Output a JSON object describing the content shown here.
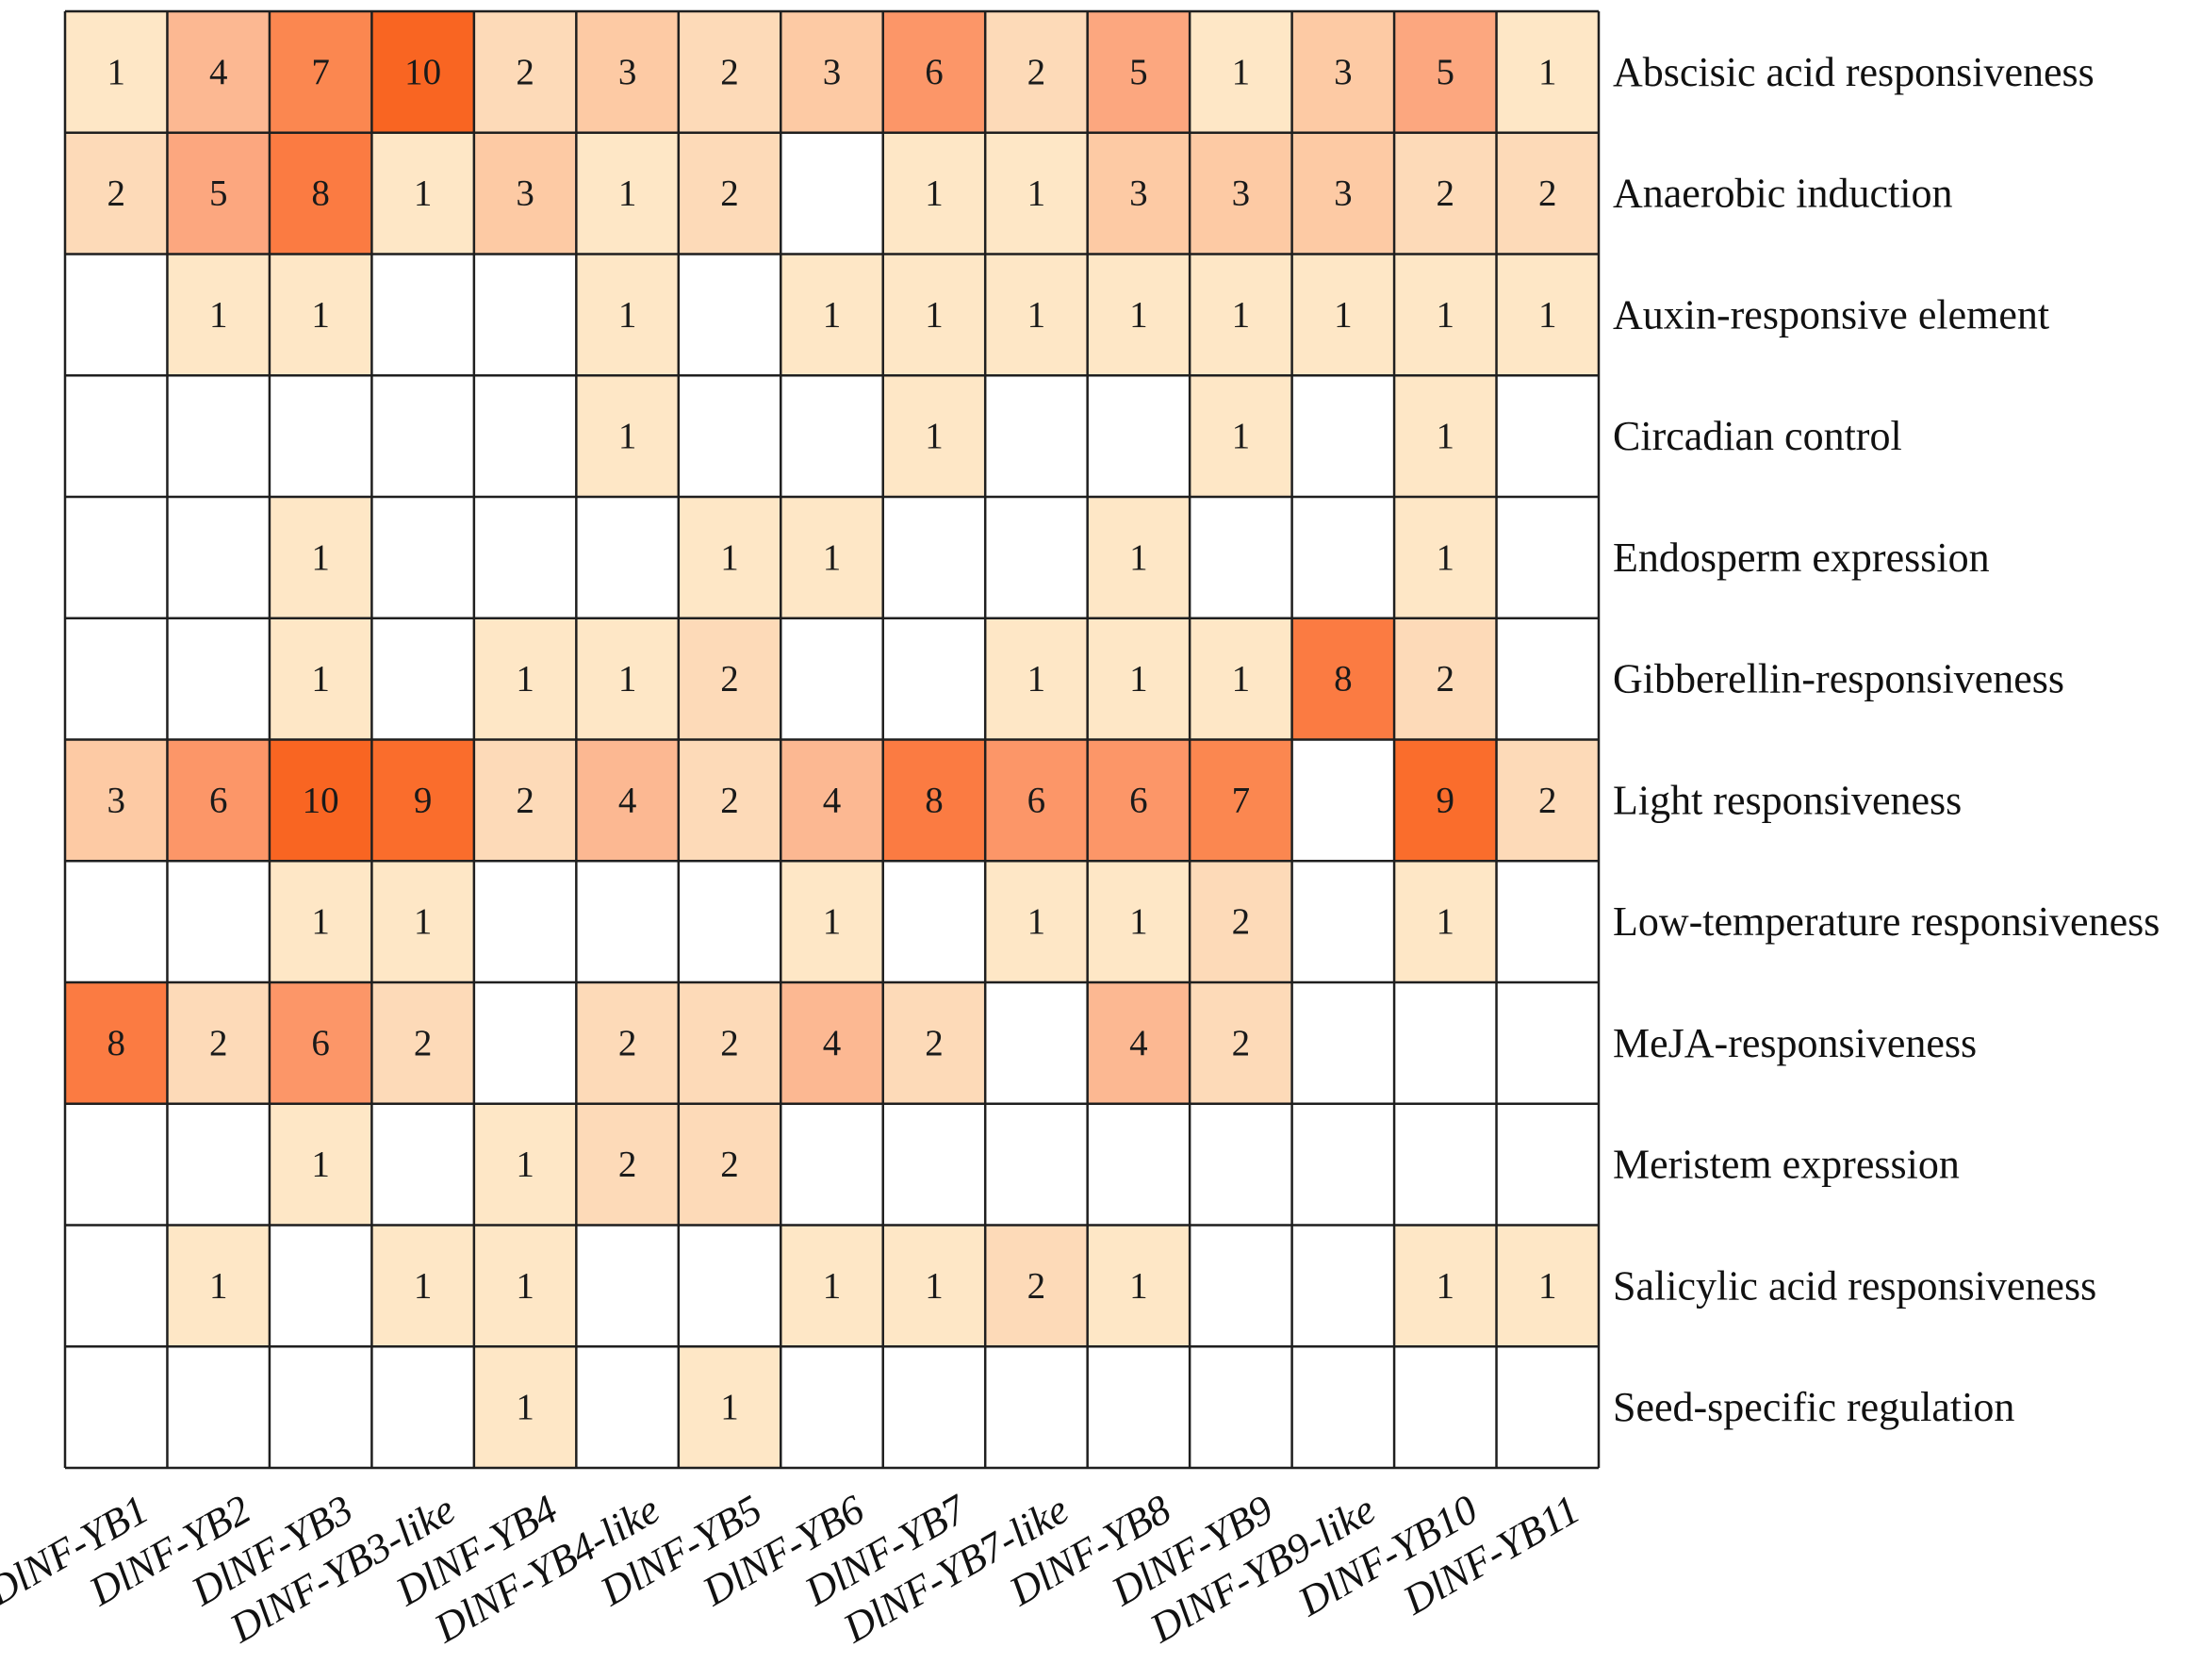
{
  "chart_data": {
    "type": "heatmap",
    "title": "",
    "xlabel": "",
    "ylabel": "",
    "columns": [
      "DlNF-YB1",
      "DlNF-YB2",
      "DlNF-YB3",
      "DlNF-YB3-like",
      "DlNF-YB4",
      "DlNF-YB4-like",
      "DlNF-YB5",
      "DlNF-YB6",
      "DlNF-YB7",
      "DlNF-YB7-like",
      "DlNF-YB8",
      "DlNF-YB9",
      "DlNF-YB9-like",
      "DlNF-YB10",
      "DlNF-YB11"
    ],
    "rows": [
      "Abscisic acid responsiveness",
      "Anaerobic induction",
      "Auxin-responsive element",
      "Circadian control",
      "Endosperm expression",
      "Gibberellin-responsiveness",
      "Light responsiveness",
      "Low-temperature responsiveness",
      "MeJA-responsiveness",
      "Meristem expression",
      "Salicylic acid responsiveness",
      "Seed-specific regulation"
    ],
    "values": [
      [
        1,
        4,
        7,
        10,
        2,
        3,
        2,
        3,
        6,
        2,
        5,
        1,
        3,
        5,
        1
      ],
      [
        2,
        5,
        8,
        1,
        3,
        1,
        2,
        null,
        1,
        1,
        3,
        3,
        3,
        2,
        2
      ],
      [
        null,
        1,
        1,
        null,
        null,
        1,
        null,
        1,
        1,
        1,
        1,
        1,
        1,
        1,
        1
      ],
      [
        null,
        null,
        null,
        null,
        null,
        1,
        null,
        null,
        1,
        null,
        null,
        1,
        null,
        1,
        null
      ],
      [
        null,
        null,
        1,
        null,
        null,
        null,
        1,
        1,
        null,
        null,
        1,
        null,
        null,
        1,
        null
      ],
      [
        null,
        null,
        1,
        null,
        1,
        1,
        2,
        null,
        null,
        1,
        1,
        1,
        8,
        2,
        null
      ],
      [
        3,
        6,
        10,
        9,
        2,
        4,
        2,
        4,
        8,
        6,
        6,
        7,
        null,
        9,
        2
      ],
      [
        null,
        null,
        1,
        1,
        null,
        null,
        null,
        1,
        null,
        1,
        1,
        2,
        null,
        1,
        null
      ],
      [
        8,
        2,
        6,
        2,
        null,
        2,
        2,
        4,
        2,
        null,
        4,
        2,
        null,
        null,
        null
      ],
      [
        null,
        null,
        1,
        null,
        1,
        2,
        2,
        null,
        null,
        null,
        null,
        null,
        null,
        null,
        null
      ],
      [
        null,
        1,
        null,
        1,
        1,
        null,
        null,
        1,
        1,
        2,
        1,
        null,
        null,
        1,
        1
      ],
      [
        null,
        null,
        null,
        null,
        1,
        null,
        1,
        null,
        null,
        null,
        null,
        null,
        null,
        null,
        null
      ]
    ],
    "value_range": [
      1,
      10
    ],
    "color_scale": {
      "empty": "#ffffff",
      "stops": [
        {
          "value": 1,
          "color": "#fee7c6"
        },
        {
          "value": 2,
          "color": "#fddab8"
        },
        {
          "value": 3,
          "color": "#fdcaa4"
        },
        {
          "value": 4,
          "color": "#fcb892"
        },
        {
          "value": 5,
          "color": "#fca77f"
        },
        {
          "value": 6,
          "color": "#fc9668"
        },
        {
          "value": 7,
          "color": "#fb8750"
        },
        {
          "value": 8,
          "color": "#fb7b42"
        },
        {
          "value": 9,
          "color": "#fa6d2c"
        },
        {
          "value": 10,
          "color": "#f96522"
        }
      ]
    },
    "grid_color": "#1f1f1f"
  }
}
